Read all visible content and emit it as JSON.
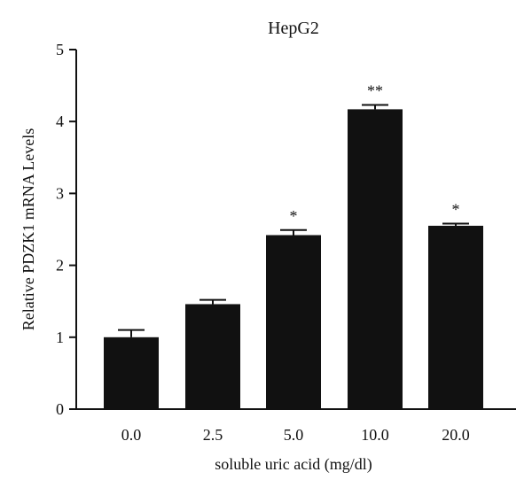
{
  "chart_data": {
    "type": "bar",
    "title": "HepG2",
    "xlabel": "soluble uric acid (mg/dl)",
    "ylabel": "Relative PDZK1 mRNA Levels",
    "categories": [
      "0.0",
      "2.5",
      "5.0",
      "10.0",
      "20.0"
    ],
    "values": [
      1.0,
      1.46,
      2.42,
      4.17,
      2.55
    ],
    "errors": [
      0.1,
      0.06,
      0.07,
      0.06,
      0.03
    ],
    "significance": [
      "",
      "",
      "*",
      "**",
      "*"
    ],
    "ylim": [
      0,
      5
    ],
    "yticks": [
      "0",
      "1",
      "2",
      "3",
      "4",
      "5"
    ],
    "grid": false,
    "bar_color": "#111111"
  }
}
